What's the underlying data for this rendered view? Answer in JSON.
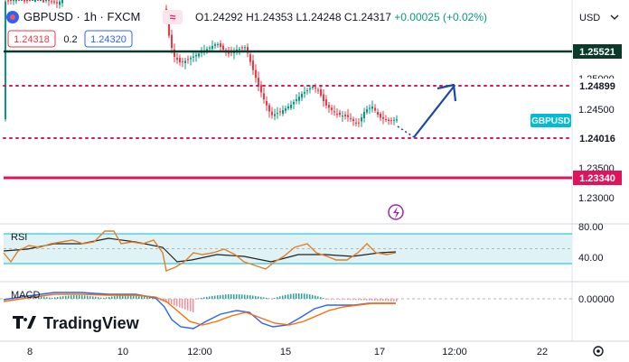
{
  "header": {
    "symbol": "GBPUSD",
    "interval": "1h",
    "source": "FXCM",
    "badge": "≈",
    "open": "O1.24292",
    "high": "H1.24353",
    "low": "L1.24248",
    "close": "C1.24317",
    "change": "+0.00025 (+0.02%)",
    "sell_price": "1.24318",
    "spread": "0.2",
    "buy_price": "1.24320",
    "currency": "USD"
  },
  "main_axis_ticks": [
    "1.25000",
    "1.24500",
    "1.23500",
    "1.23000"
  ],
  "price_lines": [
    {
      "value": "1.25521",
      "bg": "#0b3a2a",
      "fg": "#ffffff",
      "style": "solid"
    },
    {
      "value": "1.24899",
      "bg": "#ffffff",
      "fg": "#131722",
      "style": "dotted"
    },
    {
      "value": "1.24016",
      "bg": "#ffffff",
      "fg": "#131722",
      "style": "dotted"
    },
    {
      "value": "1.23340",
      "bg": "#e0145a",
      "fg": "#ffffff",
      "style": "solid"
    }
  ],
  "last_price_tag": "GBPUSD",
  "rsi": {
    "title": "RSI",
    "ticks": [
      "80.00",
      "40.00"
    ]
  },
  "macd": {
    "title": "MACD",
    "ticks": [
      "0.00000"
    ]
  },
  "x_axis": [
    "8",
    "10",
    "12:00",
    "15",
    "17",
    "12:00",
    "22"
  ],
  "brand": "TradingView",
  "chart_data": {
    "type": "candlestick",
    "symbol": "GBPUSD",
    "interval": "1h",
    "y_range": [
      1.228,
      1.258
    ],
    "x": [
      "8",
      "10",
      "12:00",
      "15",
      "17",
      "12:00",
      "22"
    ],
    "close_path": [
      [
        0,
        1.259
      ],
      [
        5,
        1.258
      ],
      [
        9,
        1.2575
      ],
      [
        12,
        1.255
      ],
      [
        14,
        1.2535
      ],
      [
        16,
        1.254
      ],
      [
        18,
        1.2543
      ],
      [
        20,
        1.2545
      ],
      [
        22,
        1.2535
      ],
      [
        24,
        1.253
      ],
      [
        26,
        1.251
      ],
      [
        28,
        1.248
      ],
      [
        30,
        1.247
      ],
      [
        32,
        1.2475
      ],
      [
        34,
        1.248
      ],
      [
        36,
        1.249
      ],
      [
        38,
        1.247
      ],
      [
        40,
        1.246
      ],
      [
        42,
        1.2455
      ],
      [
        44,
        1.245
      ],
      [
        46,
        1.2445
      ],
      [
        48,
        1.246
      ],
      [
        50,
        1.2455
      ],
      [
        52,
        1.2445
      ],
      [
        54,
        1.244
      ],
      [
        56,
        1.2445
      ],
      [
        58,
        1.2432
      ]
    ],
    "levels": [
      1.25521,
      1.24899,
      1.24016,
      1.2334
    ],
    "last_price": 1.24317,
    "projection": {
      "from": 1.24016,
      "to": 1.24899
    },
    "rsi_range": [
      0,
      100
    ],
    "rsi_levels": [
      30,
      70
    ],
    "macd_zero": 0
  },
  "colors": {
    "up": "#089981",
    "down": "#f23645",
    "rsi": "#e67e22",
    "rsi_ma": "#222222",
    "rsi_band": "#dff3f7",
    "macd": "#2962ff",
    "signal": "#ff6d00",
    "arrow": "#1848a8",
    "level_dot": "#e0145a"
  }
}
